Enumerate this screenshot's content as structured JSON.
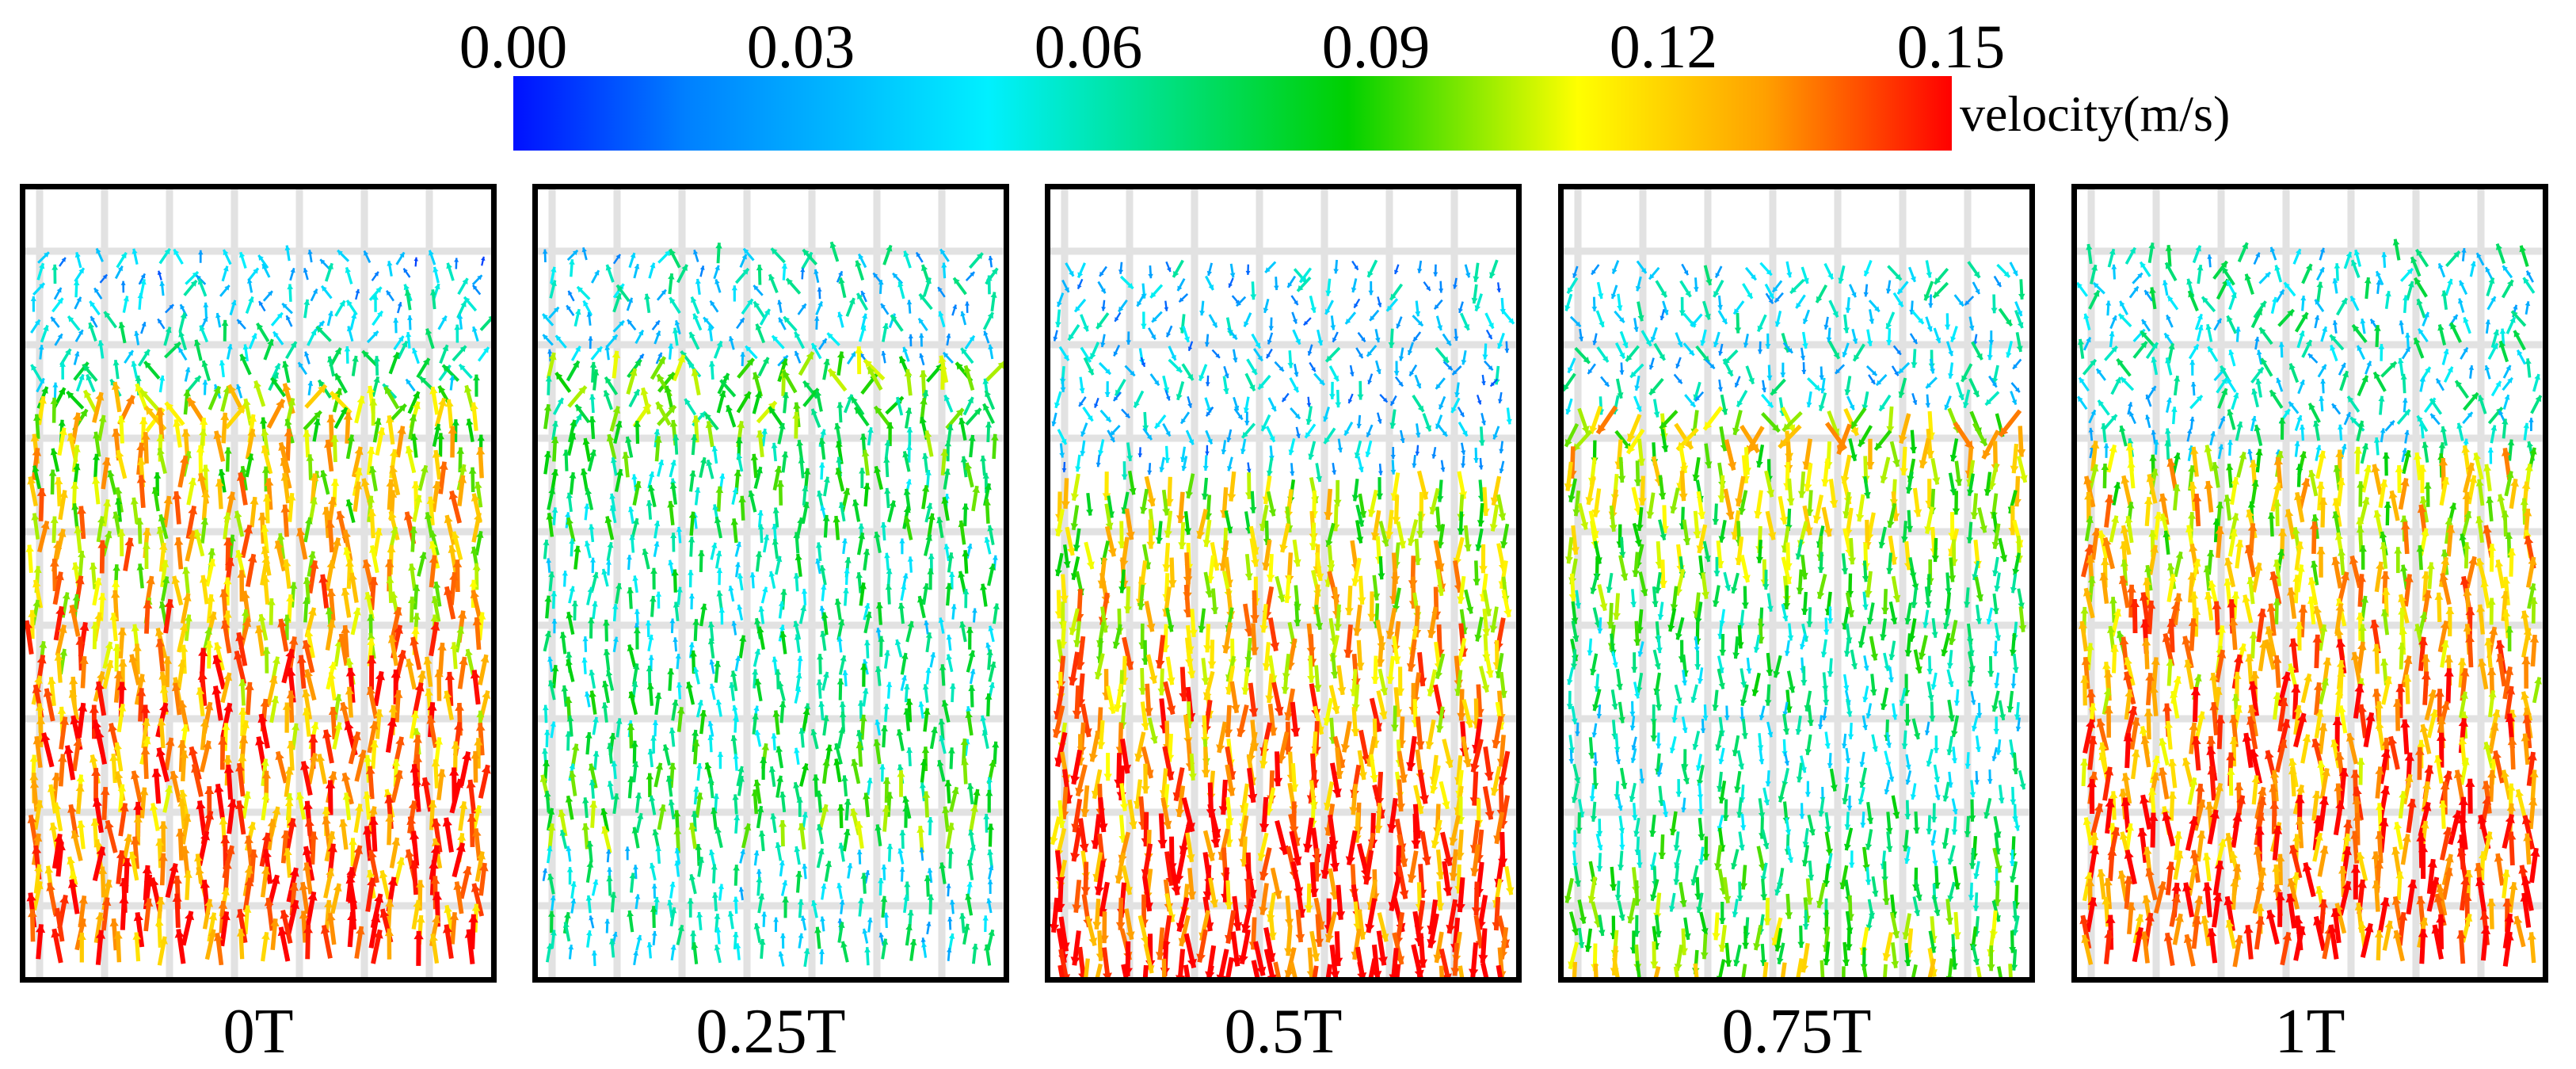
{
  "colorbar": {
    "ticks": [
      "0.00",
      "0.03",
      "0.06",
      "0.09",
      "0.12",
      "0.15"
    ],
    "unit_label": "velocity(m/s)",
    "colors": [
      "#0010ff",
      "#0080ff",
      "#00f0ff",
      "#00d000",
      "#ffff00",
      "#ffa000",
      "#ff0000"
    ]
  },
  "panels": [
    {
      "label": "0T"
    },
    {
      "label": "0.25T"
    },
    {
      "label": "0.5T"
    },
    {
      "label": "0.75T"
    },
    {
      "label": "1T"
    }
  ]
}
